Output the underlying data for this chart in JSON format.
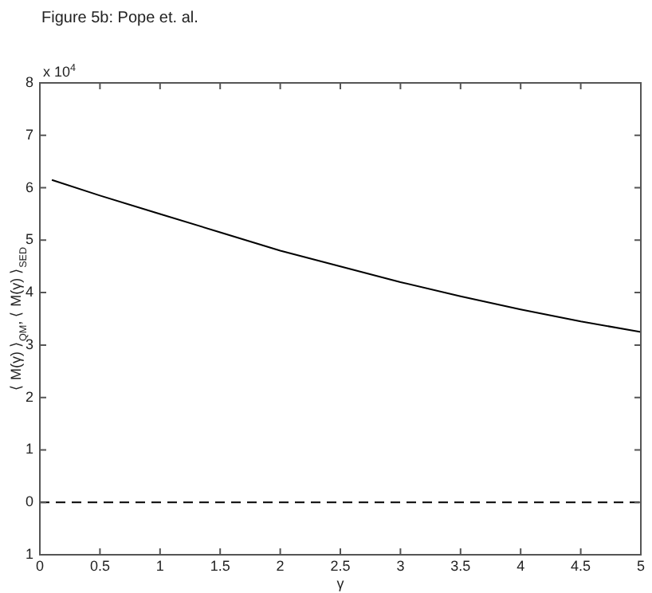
{
  "chart_data": {
    "type": "line",
    "title": "Figure 5b: Pope et. al.",
    "xlabel": "γ",
    "ylabel": "⟨ M(γ) ⟩$_{QM}$, ⟨ M(γ) ⟩$_{SED}$",
    "annotations": [
      "x 10$^{4}$"
    ],
    "x": [
      0.1,
      0.5,
      1,
      1.5,
      2,
      2.5,
      3,
      3.5,
      4,
      4.5,
      5
    ],
    "series": [
      {
        "color": "#000000",
        "values": [
          6.15,
          5.85,
          5.5,
          5.15,
          4.8,
          4.5,
          4.2,
          3.93,
          3.68,
          3.45,
          3.25
        ]
      }
    ],
    "xlim": [
      0,
      5
    ],
    "xticks": [
      0,
      0.5,
      1,
      1.5,
      2,
      2.5,
      3,
      3.5,
      4,
      4.5,
      5
    ],
    "ylim": [
      -1,
      8
    ],
    "yticks": [
      {
        "value": -1,
        "label": "1"
      },
      0,
      1,
      2,
      3,
      4,
      5,
      6,
      7,
      8
    ],
    "ref_lines": [
      {
        "axis": "y",
        "value": 0,
        "color": "#000000",
        "line_style": "dashed"
      }
    ],
    "grid": false,
    "legend": false,
    "marker": "none",
    "line_style": "solid"
  }
}
